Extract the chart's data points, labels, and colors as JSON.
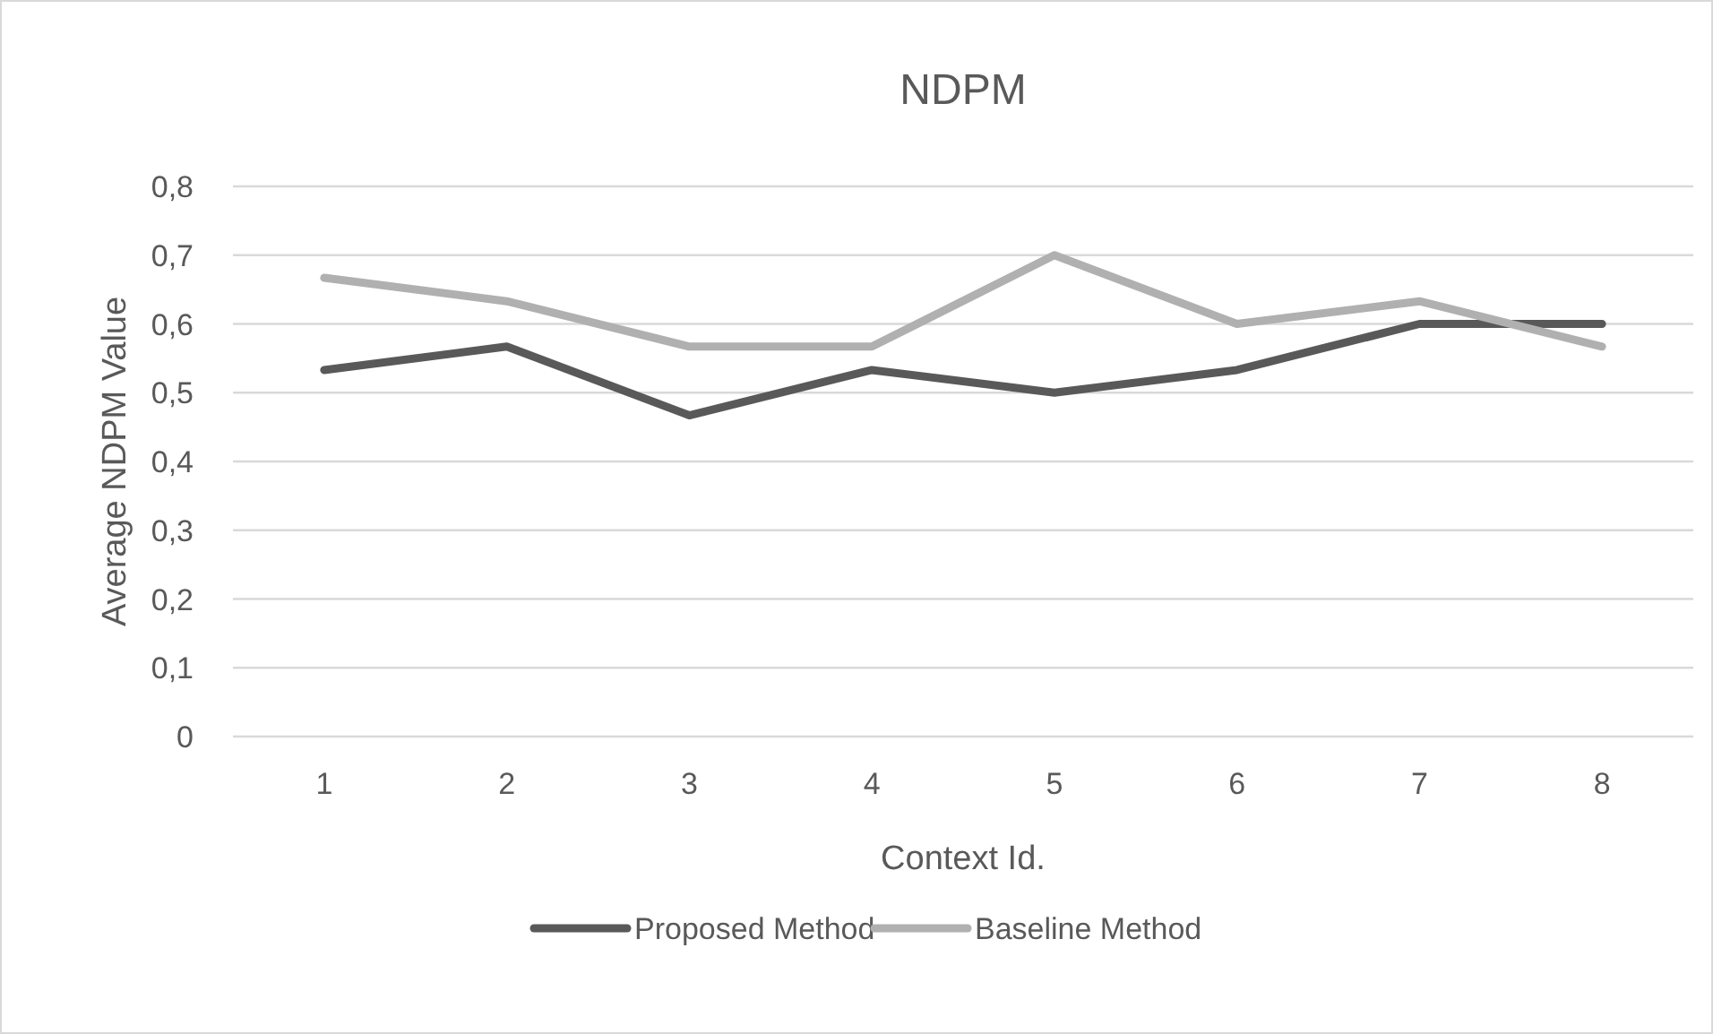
{
  "chart_data": {
    "type": "line",
    "title": "NDPM",
    "xlabel": "Context Id.",
    "ylabel": "Average NDPM Value",
    "categories": [
      "1",
      "2",
      "3",
      "4",
      "5",
      "6",
      "7",
      "8"
    ],
    "series": [
      {
        "name": "Proposed Method",
        "color": "#595959",
        "values": [
          0.533,
          0.567,
          0.467,
          0.533,
          0.5,
          0.533,
          0.6,
          0.6
        ]
      },
      {
        "name": "Baseline Method",
        "color": "#b0b0b0",
        "values": [
          0.667,
          0.633,
          0.567,
          0.567,
          0.7,
          0.6,
          0.633,
          0.567
        ]
      }
    ],
    "ylim": [
      0,
      0.8
    ],
    "yticks": [
      {
        "value": 0,
        "label": "0"
      },
      {
        "value": 0.1,
        "label": "0,1"
      },
      {
        "value": 0.2,
        "label": "0,2"
      },
      {
        "value": 0.3,
        "label": "0,3"
      },
      {
        "value": 0.4,
        "label": "0,4"
      },
      {
        "value": 0.5,
        "label": "0,5"
      },
      {
        "value": 0.6,
        "label": "0,6"
      },
      {
        "value": 0.7,
        "label": "0,7"
      },
      {
        "value": 0.8,
        "label": "0,8"
      }
    ],
    "grid": "y",
    "legend": "bottom",
    "marker": "none",
    "line_style": "solid"
  }
}
